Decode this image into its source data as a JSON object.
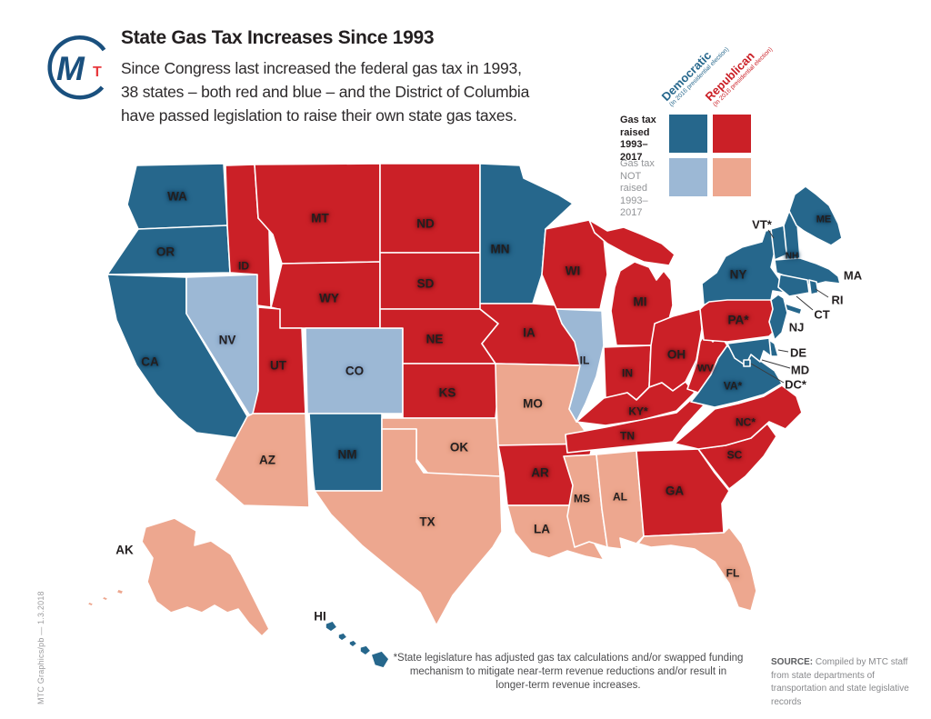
{
  "colors": {
    "dem_raised": "#26678C",
    "rep_raised": "#CB2027",
    "dem_not_raised": "#9CB8D5",
    "rep_not_raised": "#EDA78F",
    "label_text": "#231F20",
    "logo_blue": "#1A507E",
    "logo_red": "#E8393D"
  },
  "header": {
    "title": "State Gas Tax Increases Since 1993",
    "subtitle_lines": [
      "Since Congress last increased the federal gas tax in 1993,",
      "38 states – both red and blue – and the District of Columbia",
      "have passed legislation to raise their own state gas taxes."
    ],
    "logo_m": "M",
    "logo_t": "T"
  },
  "legend": {
    "columns": [
      {
        "key": "dem",
        "label": "Democratic",
        "sublabel": "(In 2016 presidential election)",
        "color": "#26678C"
      },
      {
        "key": "rep",
        "label": "Republican",
        "sublabel": "(In 2016 presidential election)",
        "color": "#CB2027"
      }
    ],
    "rows": [
      {
        "key": "raised",
        "label_lines": [
          "Gas tax",
          "raised",
          "1993–2017"
        ],
        "emphasis": true
      },
      {
        "key": "not_raised",
        "label_lines": [
          "Gas tax",
          "NOT raised",
          "1993–2017"
        ],
        "emphasis": false
      }
    ]
  },
  "map": {
    "states": [
      {
        "abbr": "WA",
        "label": "WA",
        "party": "dem",
        "raised": true
      },
      {
        "abbr": "OR",
        "label": "OR",
        "party": "dem",
        "raised": true
      },
      {
        "abbr": "CA",
        "label": "CA",
        "party": "dem",
        "raised": true
      },
      {
        "abbr": "NV",
        "label": "NV",
        "party": "dem",
        "raised": false
      },
      {
        "abbr": "ID",
        "label": "ID",
        "party": "rep",
        "raised": true
      },
      {
        "abbr": "MT",
        "label": "MT",
        "party": "rep",
        "raised": true
      },
      {
        "abbr": "WY",
        "label": "WY",
        "party": "rep",
        "raised": true
      },
      {
        "abbr": "UT",
        "label": "UT",
        "party": "rep",
        "raised": true
      },
      {
        "abbr": "CO",
        "label": "CO",
        "party": "dem",
        "raised": false
      },
      {
        "abbr": "AZ",
        "label": "AZ",
        "party": "rep",
        "raised": false
      },
      {
        "abbr": "NM",
        "label": "NM",
        "party": "dem",
        "raised": true
      },
      {
        "abbr": "ND",
        "label": "ND",
        "party": "rep",
        "raised": true
      },
      {
        "abbr": "SD",
        "label": "SD",
        "party": "rep",
        "raised": true
      },
      {
        "abbr": "NE",
        "label": "NE",
        "party": "rep",
        "raised": true
      },
      {
        "abbr": "KS",
        "label": "KS",
        "party": "rep",
        "raised": true
      },
      {
        "abbr": "OK",
        "label": "OK",
        "party": "rep",
        "raised": false
      },
      {
        "abbr": "TX",
        "label": "TX",
        "party": "rep",
        "raised": false
      },
      {
        "abbr": "MN",
        "label": "MN",
        "party": "dem",
        "raised": true
      },
      {
        "abbr": "IA",
        "label": "IA",
        "party": "rep",
        "raised": true
      },
      {
        "abbr": "MO",
        "label": "MO",
        "party": "rep",
        "raised": false
      },
      {
        "abbr": "AR",
        "label": "AR",
        "party": "rep",
        "raised": true
      },
      {
        "abbr": "LA",
        "label": "LA",
        "party": "rep",
        "raised": false
      },
      {
        "abbr": "WI",
        "label": "WI",
        "party": "rep",
        "raised": true
      },
      {
        "abbr": "IL",
        "label": "IL",
        "party": "dem",
        "raised": false
      },
      {
        "abbr": "MI",
        "label": "MI",
        "party": "rep",
        "raised": true
      },
      {
        "abbr": "IN",
        "label": "IN",
        "party": "rep",
        "raised": true
      },
      {
        "abbr": "OH",
        "label": "OH",
        "party": "rep",
        "raised": true
      },
      {
        "abbr": "KY",
        "label": "KY*",
        "party": "rep",
        "raised": true
      },
      {
        "abbr": "TN",
        "label": "TN",
        "party": "rep",
        "raised": true
      },
      {
        "abbr": "WV",
        "label": "WV",
        "party": "rep",
        "raised": true
      },
      {
        "abbr": "MS",
        "label": "MS",
        "party": "rep",
        "raised": false
      },
      {
        "abbr": "AL",
        "label": "AL",
        "party": "rep",
        "raised": false
      },
      {
        "abbr": "GA",
        "label": "GA",
        "party": "rep",
        "raised": true
      },
      {
        "abbr": "FL",
        "label": "FL",
        "party": "rep",
        "raised": false
      },
      {
        "abbr": "SC",
        "label": "SC",
        "party": "rep",
        "raised": true
      },
      {
        "abbr": "NC",
        "label": "NC*",
        "party": "rep",
        "raised": true
      },
      {
        "abbr": "VA",
        "label": "VA*",
        "party": "dem",
        "raised": true
      },
      {
        "abbr": "PA",
        "label": "PA*",
        "party": "rep",
        "raised": true
      },
      {
        "abbr": "NY",
        "label": "NY",
        "party": "dem",
        "raised": true
      },
      {
        "abbr": "NJ",
        "label": "NJ",
        "party": "dem",
        "raised": true
      },
      {
        "abbr": "DE",
        "label": "DE",
        "party": "dem",
        "raised": true
      },
      {
        "abbr": "MD",
        "label": "MD",
        "party": "dem",
        "raised": true
      },
      {
        "abbr": "DC",
        "label": "DC*",
        "party": "dem",
        "raised": true
      },
      {
        "abbr": "VT",
        "label": "VT*",
        "party": "dem",
        "raised": true
      },
      {
        "abbr": "NH",
        "label": "NH",
        "party": "dem",
        "raised": true
      },
      {
        "abbr": "ME",
        "label": "ME",
        "party": "dem",
        "raised": true
      },
      {
        "abbr": "MA",
        "label": "MA",
        "party": "dem",
        "raised": true
      },
      {
        "abbr": "RI",
        "label": "RI",
        "party": "dem",
        "raised": true
      },
      {
        "abbr": "CT",
        "label": "CT",
        "party": "dem",
        "raised": true
      },
      {
        "abbr": "AK",
        "label": "AK",
        "party": "rep",
        "raised": false
      },
      {
        "abbr": "HI",
        "label": "HI",
        "party": "dem",
        "raised": true
      }
    ]
  },
  "footnote": "*State legislature has adjusted gas tax calculations and/or swapped funding mechanism to mitigate near-term revenue reductions and/or result in longer-term revenue increases.",
  "source": {
    "label": "SOURCE:",
    "text": " Compiled by MTC staff from state departments of transportation and state legislative records"
  },
  "credit": "MTC Graphics/pb — 1.3.2018"
}
